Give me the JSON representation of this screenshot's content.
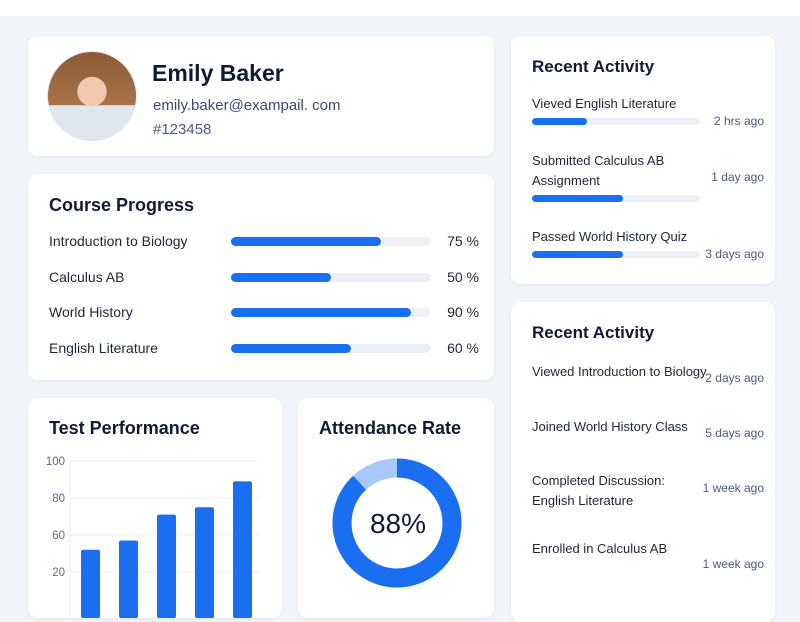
{
  "profile": {
    "name": "Emily Baker",
    "email": "emily.baker@exampail. com",
    "id": "#123458"
  },
  "course_progress": {
    "title": "Course Progress",
    "items": [
      {
        "label": "Introduction to Biology",
        "percent": 75,
        "percent_label": "75 %"
      },
      {
        "label": "Calculus AB",
        "percent": 50,
        "percent_label": "50 %"
      },
      {
        "label": "World History",
        "percent": 90,
        "percent_label": "90 %"
      },
      {
        "label": "English Literature",
        "percent": 60,
        "percent_label": "60 %"
      }
    ]
  },
  "recent_activity_1": {
    "title": "Recent Activity",
    "items": [
      {
        "text": "Vieved  English Literature",
        "time": "2 hrs ago",
        "progress": 33
      },
      {
        "text": "Submitted Calculus AB Assignment",
        "time": "1 day ago",
        "progress": 54
      },
      {
        "text": "Passed World History Quiz",
        "time": "3 days ago",
        "progress": 54
      }
    ]
  },
  "recent_activity_2": {
    "title": "Recent Activity",
    "items": [
      {
        "text": "Viewed Introduction to Biology",
        "time": "2 days ago"
      },
      {
        "text": "Joined World History Class",
        "time": "5 days ago"
      },
      {
        "text": "Completed Discussion: English Literature",
        "time": "1 week ago"
      },
      {
        "text": "Enrolled in Calculus AB",
        "time": "1 week ago"
      }
    ]
  },
  "chart_data": [
    {
      "type": "bar",
      "title": "Test Performance",
      "y_tick_labels": [
        "100",
        "80",
        "60",
        "20"
      ],
      "ylim": [
        0,
        100
      ],
      "grid": true,
      "values": [
        52,
        57,
        71,
        75,
        89
      ],
      "bar_color": "#1a6ef0"
    },
    {
      "type": "pie",
      "title": "Attendance Rate",
      "value": 88,
      "label": "88%",
      "colors": {
        "attended": "#1a6ef0",
        "remaining": "#a9c8fa"
      }
    }
  ]
}
